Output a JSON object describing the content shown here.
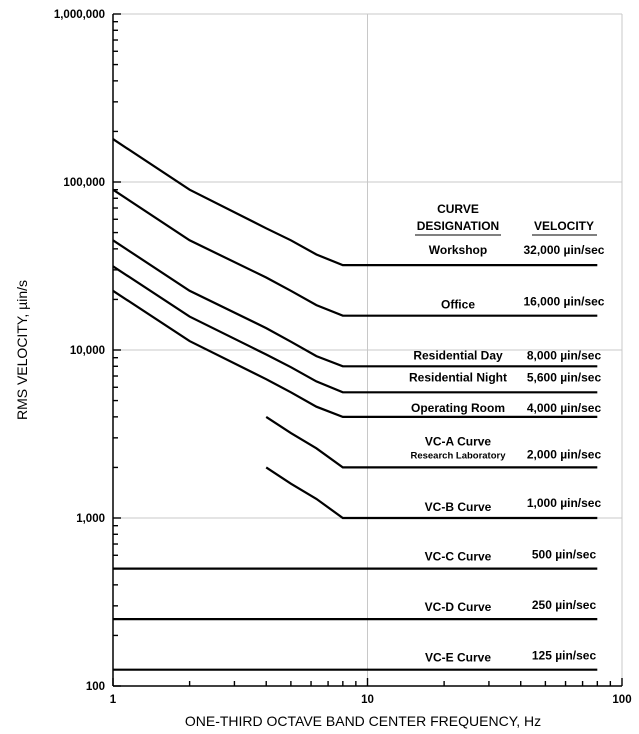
{
  "chart_data": {
    "type": "line",
    "title": "",
    "xlabel": "ONE-THIRD OCTAVE BAND CENTER FREQUENCY, Hz",
    "ylabel": "RMS VELOCITY, µin/s",
    "x_scale": "log",
    "y_scale": "log",
    "xlim": [
      1,
      100
    ],
    "ylim": [
      100,
      1000000
    ],
    "x_ticks": [
      {
        "value": 1,
        "label": "1"
      },
      {
        "value": 10,
        "label": "10"
      },
      {
        "value": 100,
        "label": "100"
      }
    ],
    "y_ticks": [
      {
        "value": 100,
        "label": "100"
      },
      {
        "value": 1000,
        "label": "1,000"
      },
      {
        "value": 10000,
        "label": "10,000"
      },
      {
        "value": 100000,
        "label": "100,000"
      },
      {
        "value": 1000000,
        "label": "1,000,000"
      }
    ],
    "grid": true,
    "header": {
      "designation_line1": "CURVE",
      "designation_line2": "DESIGNATION",
      "velocity": "VELOCITY"
    },
    "series": [
      {
        "name": "Workshop",
        "velocity_label": "32,000 µin/sec",
        "x": [
          1,
          2,
          4,
          5,
          6.3,
          8,
          80
        ],
        "y": [
          180000,
          90000,
          53000,
          45000,
          37000,
          32000,
          32000
        ]
      },
      {
        "name": "Office",
        "velocity_label": "16,000 µin/sec",
        "x": [
          1,
          2,
          4,
          5,
          6.3,
          8,
          80
        ],
        "y": [
          90000,
          45000,
          27000,
          22500,
          18500,
          16000,
          16000
        ]
      },
      {
        "name": "Residential Day",
        "velocity_label": "8,000 µin/sec",
        "x": [
          1,
          2,
          4,
          5,
          6.3,
          8,
          80
        ],
        "y": [
          45000,
          22500,
          13500,
          11200,
          9200,
          8000,
          8000
        ]
      },
      {
        "name": "Residential Night",
        "velocity_label": "5,600 µin/sec",
        "x": [
          1,
          2,
          4,
          5,
          6.3,
          8,
          80
        ],
        "y": [
          31500,
          15800,
          9400,
          7900,
          6500,
          5600,
          5600
        ]
      },
      {
        "name": "Operating Room",
        "velocity_label": "4,000 µin/sec",
        "x": [
          1,
          2,
          4,
          5,
          6.3,
          8,
          80
        ],
        "y": [
          22500,
          11300,
          6700,
          5600,
          4600,
          4000,
          4000
        ]
      },
      {
        "name": "VC-A Curve",
        "subtitle": "Research Laboratory",
        "velocity_label": "2,000 µin/sec",
        "x": [
          4,
          5,
          6.3,
          8,
          80
        ],
        "y": [
          4000,
          3200,
          2600,
          2000,
          2000
        ]
      },
      {
        "name": "VC-B Curve",
        "velocity_label": "1,000 µin/sec",
        "x": [
          4,
          5,
          6.3,
          8,
          80
        ],
        "y": [
          2000,
          1600,
          1300,
          1000,
          1000
        ]
      },
      {
        "name": "VC-C Curve",
        "velocity_label": "500 µin/sec",
        "x": [
          1,
          80
        ],
        "y": [
          500,
          500
        ]
      },
      {
        "name": "VC-D Curve",
        "velocity_label": "250 µin/sec",
        "x": [
          1,
          80
        ],
        "y": [
          250,
          250
        ]
      },
      {
        "name": "VC-E Curve",
        "velocity_label": "125 µin/sec",
        "x": [
          1,
          80
        ],
        "y": [
          125,
          125
        ]
      }
    ]
  }
}
